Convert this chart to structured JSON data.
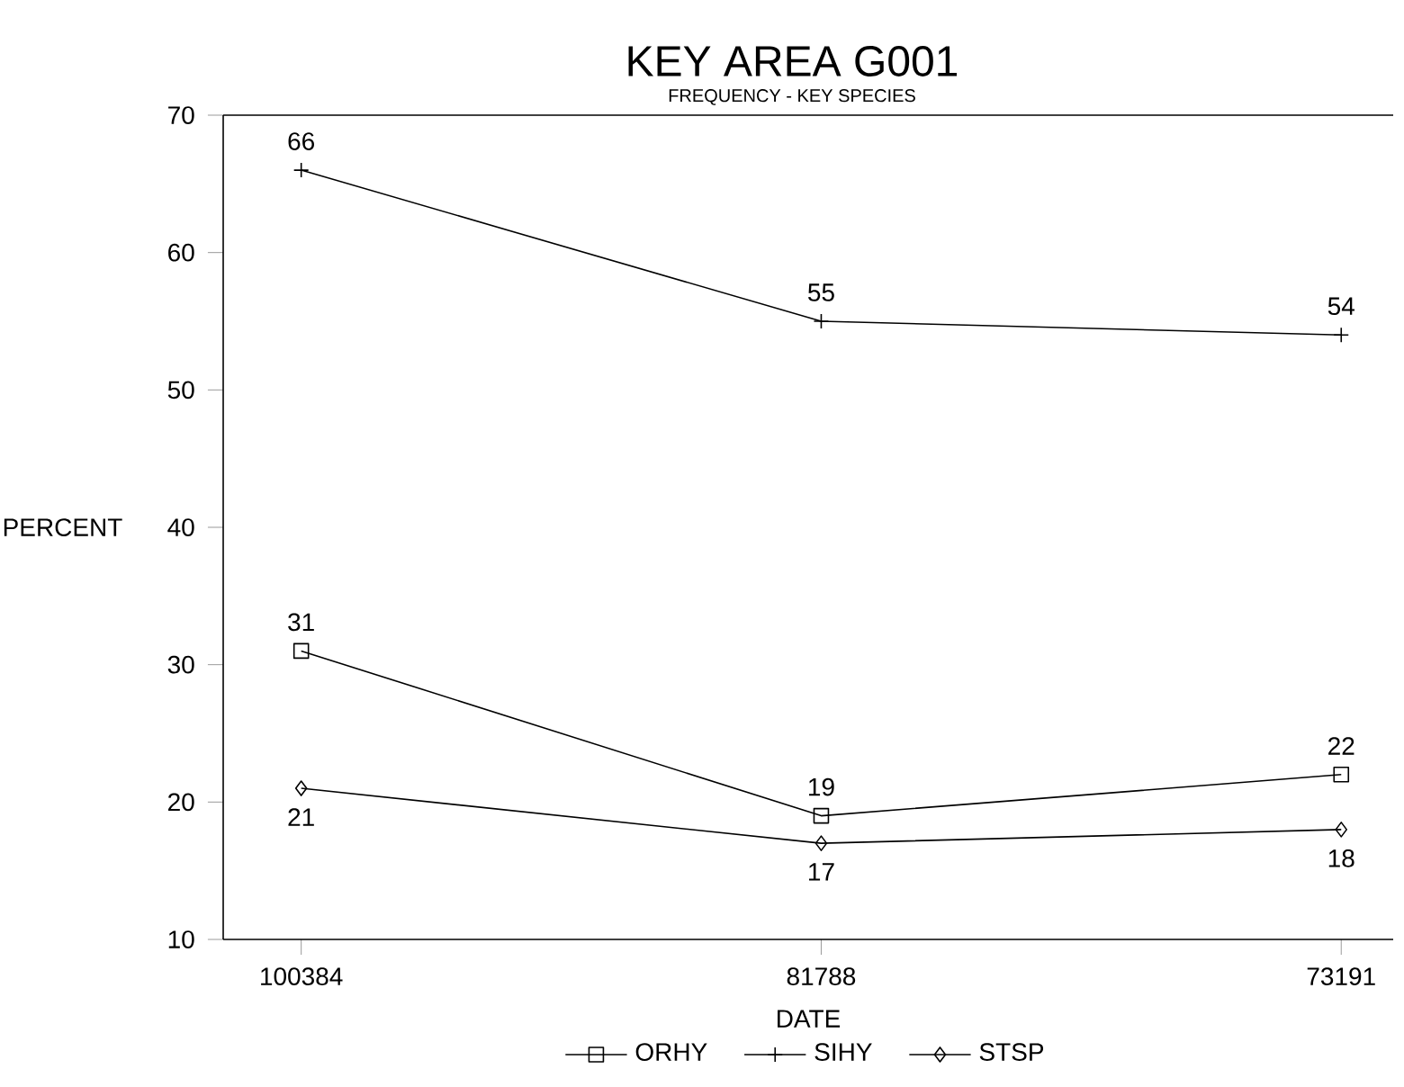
{
  "chart_data": {
    "type": "line",
    "title": "KEY AREA G001",
    "subtitle": "FREQUENCY - KEY SPECIES",
    "xlabel": "DATE",
    "ylabel": "PERCENT",
    "categories": [
      "100384",
      "81788",
      "73191"
    ],
    "series": [
      {
        "name": "ORHY",
        "color": "#000000",
        "marker": "square",
        "values": [
          31,
          19,
          22
        ]
      },
      {
        "name": "SIHY",
        "color": "#000000",
        "marker": "cross",
        "values": [
          66,
          55,
          54
        ]
      },
      {
        "name": "STSP",
        "color": "#000000",
        "marker": "diamond",
        "values": [
          21,
          17,
          18
        ]
      }
    ],
    "ylim": [
      10,
      70
    ],
    "yticks": [
      10,
      20,
      30,
      40,
      50,
      60,
      70
    ],
    "data_labels": true,
    "legend": "bottom",
    "grid": false,
    "line_style": "solid"
  }
}
